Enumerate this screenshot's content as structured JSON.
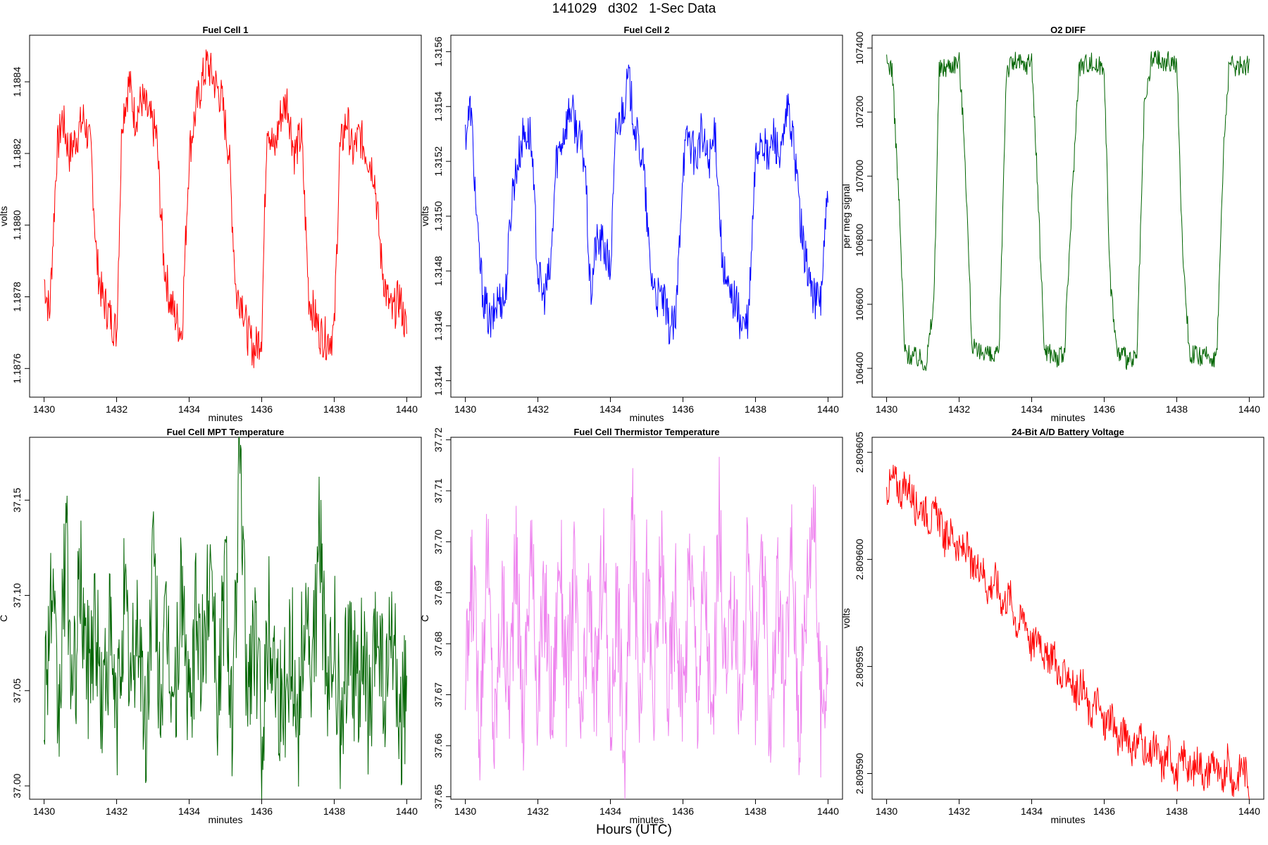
{
  "title": "141029   d302   1-Sec Data",
  "xlabel_outer": "Hours (UTC)",
  "chart_data": [
    {
      "type": "line",
      "title": "Fuel Cell 1",
      "xlabel": "minutes",
      "ylabel": "volts",
      "color": "#ff0000",
      "xlim": [
        1429.6,
        1440.4
      ],
      "ylim": [
        1.18752,
        1.18853
      ],
      "xticks": [
        1430,
        1432,
        1434,
        1436,
        1438,
        1440
      ],
      "xtick_labels": [
        "1430",
        "1432",
        "1434",
        "1436",
        "1438",
        "1440"
      ],
      "yticks": [
        1.1876,
        1.1878,
        1.188,
        1.1882,
        1.1884
      ],
      "ytick_labels": [
        "1.1876",
        "1.1878",
        "1.1880",
        "1.1882",
        "1.1884"
      ],
      "grid": false,
      "series": [
        {
          "x": [
            1430,
            1430.15,
            1430.35,
            1430.5,
            1430.7,
            1430.9,
            1431.1,
            1431.3,
            1431.45,
            1431.6,
            1431.8,
            1432,
            1432.15,
            1432.35,
            1432.5,
            1432.7,
            1432.9,
            1433.1,
            1433.3,
            1433.45,
            1433.6,
            1433.8,
            1434,
            1434.15,
            1434.35,
            1434.5,
            1434.7,
            1434.9,
            1435.1,
            1435.3,
            1435.45,
            1435.6,
            1435.8,
            1436,
            1436.15,
            1436.35,
            1436.5,
            1436.7,
            1436.9,
            1437.1,
            1437.3,
            1437.45,
            1437.6,
            1437.8,
            1438,
            1438.15,
            1438.35,
            1438.5,
            1438.7,
            1438.9,
            1439.1,
            1439.3,
            1439.45,
            1439.6,
            1439.8,
            1440
          ],
          "y": [
            1.18785,
            1.18775,
            1.1882,
            1.1883,
            1.1882,
            1.18825,
            1.1883,
            1.1882,
            1.1879,
            1.1878,
            1.18775,
            1.1877,
            1.1883,
            1.1884,
            1.1883,
            1.18835,
            1.1883,
            1.18825,
            1.1879,
            1.1878,
            1.18775,
            1.1877,
            1.1882,
            1.1883,
            1.1884,
            1.18845,
            1.1884,
            1.18835,
            1.1882,
            1.1878,
            1.1878,
            1.1877,
            1.18765,
            1.1877,
            1.1883,
            1.1882,
            1.1883,
            1.18835,
            1.1882,
            1.18825,
            1.1878,
            1.18775,
            1.1877,
            1.18768,
            1.1877,
            1.1882,
            1.1883,
            1.1882,
            1.18825,
            1.1882,
            1.18815,
            1.1879,
            1.1878,
            1.18775,
            1.1878,
            1.1877
          ]
        }
      ]
    },
    {
      "type": "line",
      "title": "Fuel Cell 2",
      "xlabel": "minutes",
      "ylabel": "volts",
      "color": "#0000ff",
      "xlim": [
        1429.6,
        1440.4
      ],
      "ylim": [
        1.31434,
        1.31566
      ],
      "xticks": [
        1430,
        1432,
        1434,
        1436,
        1438,
        1440
      ],
      "xtick_labels": [
        "1430",
        "1432",
        "1434",
        "1436",
        "1438",
        "1440"
      ],
      "yticks": [
        1.3144,
        1.3146,
        1.3148,
        1.315,
        1.3152,
        1.3154,
        1.3156
      ],
      "ytick_labels": [
        "1.3144",
        "1.3146",
        "1.3148",
        "1.3150",
        "1.3152",
        "1.3154",
        "1.3156"
      ],
      "grid": false,
      "series": [
        {
          "x": [
            1430,
            1430.15,
            1430.35,
            1430.5,
            1430.7,
            1430.9,
            1431.1,
            1431.3,
            1431.45,
            1431.6,
            1431.8,
            1432,
            1432.15,
            1432.35,
            1432.5,
            1432.7,
            1432.9,
            1433.1,
            1433.3,
            1433.45,
            1433.6,
            1433.8,
            1434,
            1434.15,
            1434.35,
            1434.5,
            1434.7,
            1434.9,
            1435.1,
            1435.3,
            1435.45,
            1435.6,
            1435.8,
            1436,
            1436.15,
            1436.35,
            1436.5,
            1436.7,
            1436.9,
            1437.1,
            1437.3,
            1437.45,
            1437.6,
            1437.8,
            1438,
            1438.15,
            1438.35,
            1438.5,
            1438.7,
            1438.9,
            1439.1,
            1439.3,
            1439.45,
            1439.6,
            1439.8,
            1440
          ],
          "y": [
            1.3153,
            1.3154,
            1.3149,
            1.3147,
            1.3146,
            1.3147,
            1.3147,
            1.3151,
            1.3152,
            1.3153,
            1.3153,
            1.3148,
            1.3147,
            1.3148,
            1.3152,
            1.3153,
            1.3154,
            1.3153,
            1.3152,
            1.3147,
            1.3149,
            1.3149,
            1.3148,
            1.3153,
            1.3154,
            1.3155,
            1.3153,
            1.3152,
            1.3148,
            1.3147,
            1.3147,
            1.3146,
            1.3146,
            1.3152,
            1.3153,
            1.3152,
            1.3153,
            1.3152,
            1.3153,
            1.3148,
            1.3147,
            1.3147,
            1.3146,
            1.3146,
            1.3152,
            1.3153,
            1.3152,
            1.3153,
            1.3152,
            1.3154,
            1.3152,
            1.3149,
            1.3148,
            1.3147,
            1.3147,
            1.3151
          ]
        }
      ]
    },
    {
      "type": "line",
      "title": "O2 DIFF",
      "xlabel": "minutes",
      "ylabel": "per meg signal",
      "color": "#006400",
      "xlim": [
        1429.6,
        1440.4
      ],
      "ylim": [
        106310,
        107440
      ],
      "xticks": [
        1430,
        1432,
        1434,
        1436,
        1438,
        1440
      ],
      "xtick_labels": [
        "1430",
        "1432",
        "1434",
        "1436",
        "1438",
        "1440"
      ],
      "yticks": [
        106400,
        106600,
        106800,
        107000,
        107200,
        107400
      ],
      "ytick_labels": [
        "106400",
        "106600",
        "106800",
        "107000",
        "107200",
        "107400"
      ],
      "grid": false,
      "series": [
        {
          "x": [
            1430,
            1430.15,
            1430.35,
            1430.5,
            1430.7,
            1430.9,
            1431.1,
            1431.3,
            1431.45,
            1431.6,
            1431.8,
            1432,
            1432.15,
            1432.35,
            1432.5,
            1432.7,
            1432.9,
            1433.1,
            1433.3,
            1433.45,
            1433.6,
            1433.8,
            1434,
            1434.15,
            1434.35,
            1434.5,
            1434.7,
            1434.9,
            1435.1,
            1435.3,
            1435.45,
            1435.6,
            1435.8,
            1436,
            1436.15,
            1436.35,
            1436.5,
            1436.7,
            1436.9,
            1437.1,
            1437.3,
            1437.45,
            1437.6,
            1437.8,
            1438,
            1438.15,
            1438.35,
            1438.5,
            1438.7,
            1438.9,
            1439.1,
            1439.3,
            1439.45,
            1439.6,
            1439.8,
            1440
          ],
          "y": [
            107350,
            107340,
            106900,
            106450,
            106440,
            106430,
            106420,
            106600,
            107330,
            107340,
            107350,
            107360,
            107100,
            106480,
            106440,
            106460,
            106430,
            106440,
            107330,
            107350,
            107360,
            107340,
            107370,
            107000,
            106460,
            106450,
            106430,
            106440,
            106900,
            107340,
            107350,
            107360,
            107340,
            107350,
            106700,
            106450,
            106440,
            106420,
            106430,
            107200,
            107360,
            107370,
            107350,
            107360,
            107350,
            106800,
            106450,
            106440,
            106430,
            106440,
            106430,
            107100,
            107350,
            107340,
            107350,
            107340
          ]
        }
      ]
    },
    {
      "type": "line",
      "title": "Fuel Cell MPT Temperature",
      "xlabel": "minutes",
      "ylabel": "C",
      "color": "#006400",
      "xlim": [
        1429.6,
        1440.4
      ],
      "ylim": [
        36.993,
        37.183
      ],
      "xticks": [
        1430,
        1432,
        1434,
        1436,
        1438,
        1440
      ],
      "xtick_labels": [
        "1430",
        "1432",
        "1434",
        "1436",
        "1438",
        "1440"
      ],
      "yticks": [
        37.0,
        37.05,
        37.1,
        37.15
      ],
      "ytick_labels": [
        "37.00",
        "37.05",
        "37.10",
        "37.15"
      ],
      "grid": false,
      "series": [
        {
          "x": [
            1430,
            1430.2,
            1430.4,
            1430.6,
            1430.8,
            1431,
            1431.2,
            1431.4,
            1431.6,
            1431.8,
            1432,
            1432.2,
            1432.4,
            1432.6,
            1432.8,
            1433,
            1433.2,
            1433.4,
            1433.6,
            1433.8,
            1434,
            1434.2,
            1434.4,
            1434.6,
            1434.8,
            1435,
            1435.2,
            1435.4,
            1435.6,
            1435.8,
            1436,
            1436.2,
            1436.4,
            1436.6,
            1436.8,
            1437,
            1437.2,
            1437.4,
            1437.6,
            1437.8,
            1438,
            1438.2,
            1438.4,
            1438.6,
            1438.8,
            1439,
            1439.2,
            1439.4,
            1439.6,
            1439.8,
            1440
          ],
          "y": [
            37.05,
            37.1,
            37.03,
            37.13,
            37.04,
            37.11,
            37.06,
            37.09,
            37.04,
            37.08,
            37.03,
            37.1,
            37.05,
            37.09,
            37.02,
            37.12,
            37.05,
            37.08,
            37.04,
            37.11,
            37.03,
            37.09,
            37.06,
            37.13,
            37.04,
            37.12,
            37.03,
            37.17,
            37.05,
            37.08,
            37.03,
            37.09,
            37.06,
            37.04,
            37.08,
            37.03,
            37.1,
            37.05,
            37.14,
            37.04,
            37.08,
            37.02,
            37.09,
            37.05,
            37.07,
            37.03,
            37.09,
            37.04,
            37.08,
            37.03,
            37.05
          ]
        }
      ]
    },
    {
      "type": "line",
      "title": "Fuel Cell Thermistor Temperature",
      "xlabel": "minutes",
      "ylabel": "C",
      "color": "#ee82ee",
      "xlim": [
        1429.6,
        1440.4
      ],
      "ylim": [
        37.6495,
        37.7205
      ],
      "xticks": [
        1430,
        1432,
        1434,
        1436,
        1438,
        1440
      ],
      "xtick_labels": [
        "1430",
        "1432",
        "1434",
        "1436",
        "1438",
        "1440"
      ],
      "yticks": [
        37.65,
        37.66,
        37.67,
        37.68,
        37.69,
        37.7,
        37.71,
        37.72
      ],
      "ytick_labels": [
        "37.65",
        "37.66",
        "37.67",
        "37.68",
        "37.69",
        "37.70",
        "37.71",
        "37.72"
      ],
      "grid": false,
      "series": [
        {
          "x": [
            1430,
            1430.2,
            1430.4,
            1430.6,
            1430.8,
            1431,
            1431.2,
            1431.4,
            1431.6,
            1431.8,
            1432,
            1432.2,
            1432.4,
            1432.6,
            1432.8,
            1433,
            1433.2,
            1433.4,
            1433.6,
            1433.8,
            1434,
            1434.2,
            1434.4,
            1434.6,
            1434.8,
            1435,
            1435.2,
            1435.4,
            1435.6,
            1435.8,
            1436,
            1436.2,
            1436.4,
            1436.6,
            1436.8,
            1437,
            1437.2,
            1437.4,
            1437.6,
            1437.8,
            1438,
            1438.2,
            1438.4,
            1438.6,
            1438.8,
            1439,
            1439.2,
            1439.4,
            1439.6,
            1439.8,
            1440
          ],
          "y": [
            37.67,
            37.695,
            37.665,
            37.7,
            37.66,
            37.69,
            37.67,
            37.695,
            37.665,
            37.7,
            37.67,
            37.69,
            37.665,
            37.7,
            37.67,
            37.695,
            37.66,
            37.69,
            37.67,
            37.7,
            37.665,
            37.69,
            37.655,
            37.705,
            37.67,
            37.695,
            37.665,
            37.7,
            37.67,
            37.69,
            37.665,
            37.7,
            37.67,
            37.695,
            37.66,
            37.705,
            37.67,
            37.69,
            37.665,
            37.7,
            37.67,
            37.695,
            37.665,
            37.69,
            37.67,
            37.7,
            37.665,
            37.69,
            37.71,
            37.665,
            37.68
          ]
        }
      ]
    },
    {
      "type": "line",
      "title": "24-Bit A/D Battery Voltage",
      "xlabel": "minutes",
      "ylabel": "volts",
      "color": "#ff0000",
      "xlim": [
        1429.6,
        1440.4
      ],
      "ylim": [
        2.8095888,
        2.8096057
      ],
      "xticks": [
        1430,
        1432,
        1434,
        1436,
        1438,
        1440
      ],
      "xtick_labels": [
        "1430",
        "1432",
        "1434",
        "1436",
        "1438",
        "1440"
      ],
      "yticks": [
        2.80959,
        2.809595,
        2.8096,
        2.809605
      ],
      "ytick_labels": [
        "2.809590",
        "2.809595",
        "2.809600",
        "2.809605"
      ],
      "grid": false,
      "series": [
        {
          "x": [
            1430,
            1430.2,
            1430.4,
            1430.6,
            1430.8,
            1431,
            1431.2,
            1431.4,
            1431.6,
            1431.8,
            1432,
            1432.2,
            1432.4,
            1432.6,
            1432.8,
            1433,
            1433.2,
            1433.4,
            1433.6,
            1433.8,
            1434,
            1434.2,
            1434.4,
            1434.6,
            1434.8,
            1435,
            1435.2,
            1435.4,
            1435.6,
            1435.8,
            1436,
            1436.2,
            1436.4,
            1436.6,
            1436.8,
            1437,
            1437.2,
            1437.4,
            1437.6,
            1437.8,
            1438,
            1438.2,
            1438.4,
            1438.6,
            1438.8,
            1439,
            1439.2,
            1439.4,
            1439.6,
            1439.8,
            1440
          ],
          "y": [
            2.8096032,
            2.8096038,
            2.8096031,
            2.8096035,
            2.8096024,
            2.8096025,
            2.8096018,
            2.8096022,
            2.8096009,
            2.8096013,
            2.8096003,
            2.8096006,
            2.8095993,
            2.8095999,
            2.8095985,
            2.8095991,
            2.8095979,
            2.8095984,
            2.8095968,
            2.8095975,
            2.8095958,
            2.8095966,
            2.8095952,
            2.8095958,
            2.8095941,
            2.8095949,
            2.8095936,
            2.8095943,
            2.8095926,
            2.8095935,
            2.8095921,
            2.8095929,
            2.8095914,
            2.8095922,
            2.8095909,
            2.8095919,
            2.8095904,
            2.8095913,
            2.8095902,
            2.8095912,
            2.8095898,
            2.8095909,
            2.8095899,
            2.8095907,
            2.8095897,
            2.8095908,
            2.8095895,
            2.8095906,
            2.8095894,
            2.8095905,
            2.8095896
          ]
        }
      ]
    }
  ]
}
